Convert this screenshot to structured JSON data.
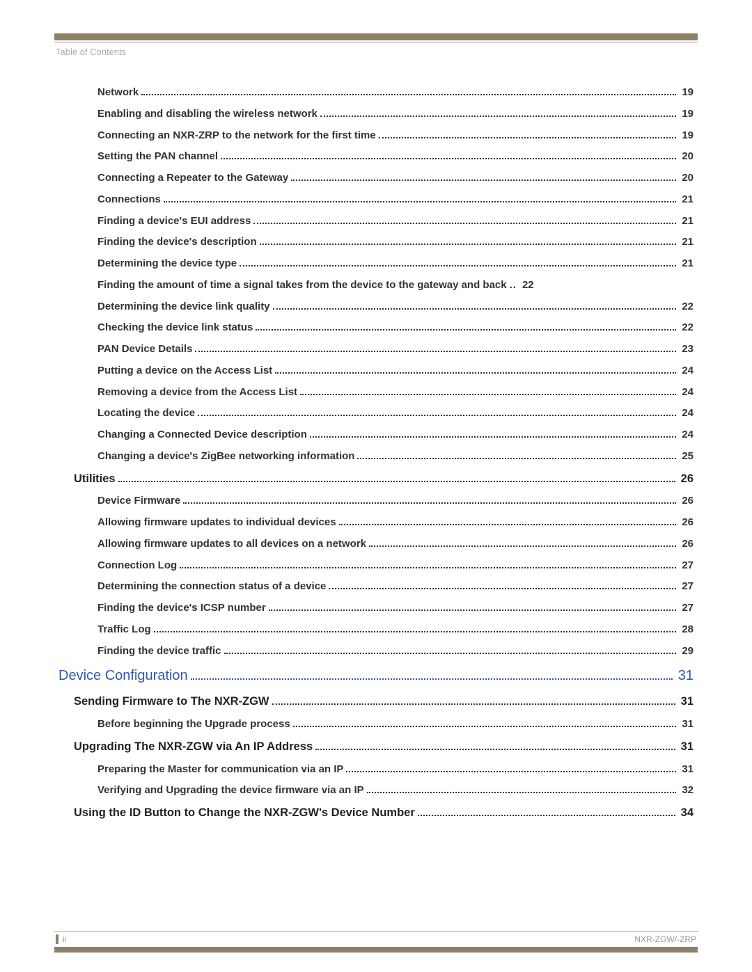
{
  "header": {
    "title": "Table of Contents"
  },
  "toc": [
    {
      "level": 3,
      "title": "Network",
      "page": "19"
    },
    {
      "level": 3,
      "title": "Enabling and disabling the wireless network",
      "page": "19"
    },
    {
      "level": 3,
      "title": "Connecting an NXR-ZRP to the network for the first time",
      "page": "19"
    },
    {
      "level": 3,
      "title": "Setting the PAN channel",
      "page": "20"
    },
    {
      "level": 3,
      "title": "Connecting a Repeater to the Gateway",
      "page": "20"
    },
    {
      "level": 3,
      "title": "Connections",
      "page": "21"
    },
    {
      "level": 3,
      "title": "Finding a device's EUI address",
      "page": "21"
    },
    {
      "level": 3,
      "title": "Finding the device's description",
      "page": "21"
    },
    {
      "level": 3,
      "title": "Determining the device type",
      "page": "21"
    },
    {
      "level": 3,
      "title": "Finding the amount of time a signal takes from the device to the gateway and back",
      "page": "22",
      "nolead": true
    },
    {
      "level": 3,
      "title": "Determining the device link quality",
      "page": "22"
    },
    {
      "level": 3,
      "title": "Checking the device link status",
      "page": "22"
    },
    {
      "level": 3,
      "title": "PAN Device Details",
      "page": "23"
    },
    {
      "level": 3,
      "title": "Putting a device on the Access List",
      "page": "24"
    },
    {
      "level": 3,
      "title": "Removing a device from the Access List",
      "page": "24"
    },
    {
      "level": 3,
      "title": "Locating the device",
      "page": "24"
    },
    {
      "level": 3,
      "title": "Changing a Connected Device description",
      "page": "24"
    },
    {
      "level": 3,
      "title": "Changing a device's ZigBee networking information",
      "page": "25"
    },
    {
      "level": 2,
      "title": "Utilities",
      "page": "26"
    },
    {
      "level": 3,
      "title": "Device Firmware",
      "page": "26"
    },
    {
      "level": 3,
      "title": "Allowing firmware updates to individual devices",
      "page": "26"
    },
    {
      "level": 3,
      "title": "Allowing firmware updates to all devices on a network",
      "page": "26"
    },
    {
      "level": 3,
      "title": "Connection Log",
      "page": "27"
    },
    {
      "level": 3,
      "title": "Determining the connection status of a device",
      "page": "27"
    },
    {
      "level": 3,
      "title": "Finding the device's ICSP number",
      "page": "27"
    },
    {
      "level": 3,
      "title": "Traffic Log",
      "page": "28"
    },
    {
      "level": 3,
      "title": "Finding the device traffic",
      "page": "29"
    },
    {
      "level": 1,
      "title": "Device Configuration",
      "page": "31"
    },
    {
      "level": 2,
      "title": "Sending Firmware to The NXR-ZGW",
      "page": "31"
    },
    {
      "level": 3,
      "title": "Before beginning the Upgrade process",
      "page": "31"
    },
    {
      "level": 2,
      "title": "Upgrading The NXR-ZGW via An IP Address",
      "page": "31"
    },
    {
      "level": 3,
      "title": "Preparing the Master for communication via an IP",
      "page": "31"
    },
    {
      "level": 3,
      "title": "Verifying and Upgrading the device firmware via an IP",
      "page": "32"
    },
    {
      "level": 2,
      "title": "Using the ID Button to Change the NXR-ZGW's Device Number",
      "page": "34"
    }
  ],
  "footer": {
    "page_num": "ii",
    "doc_code": "NXR-ZGW/-ZRP"
  }
}
